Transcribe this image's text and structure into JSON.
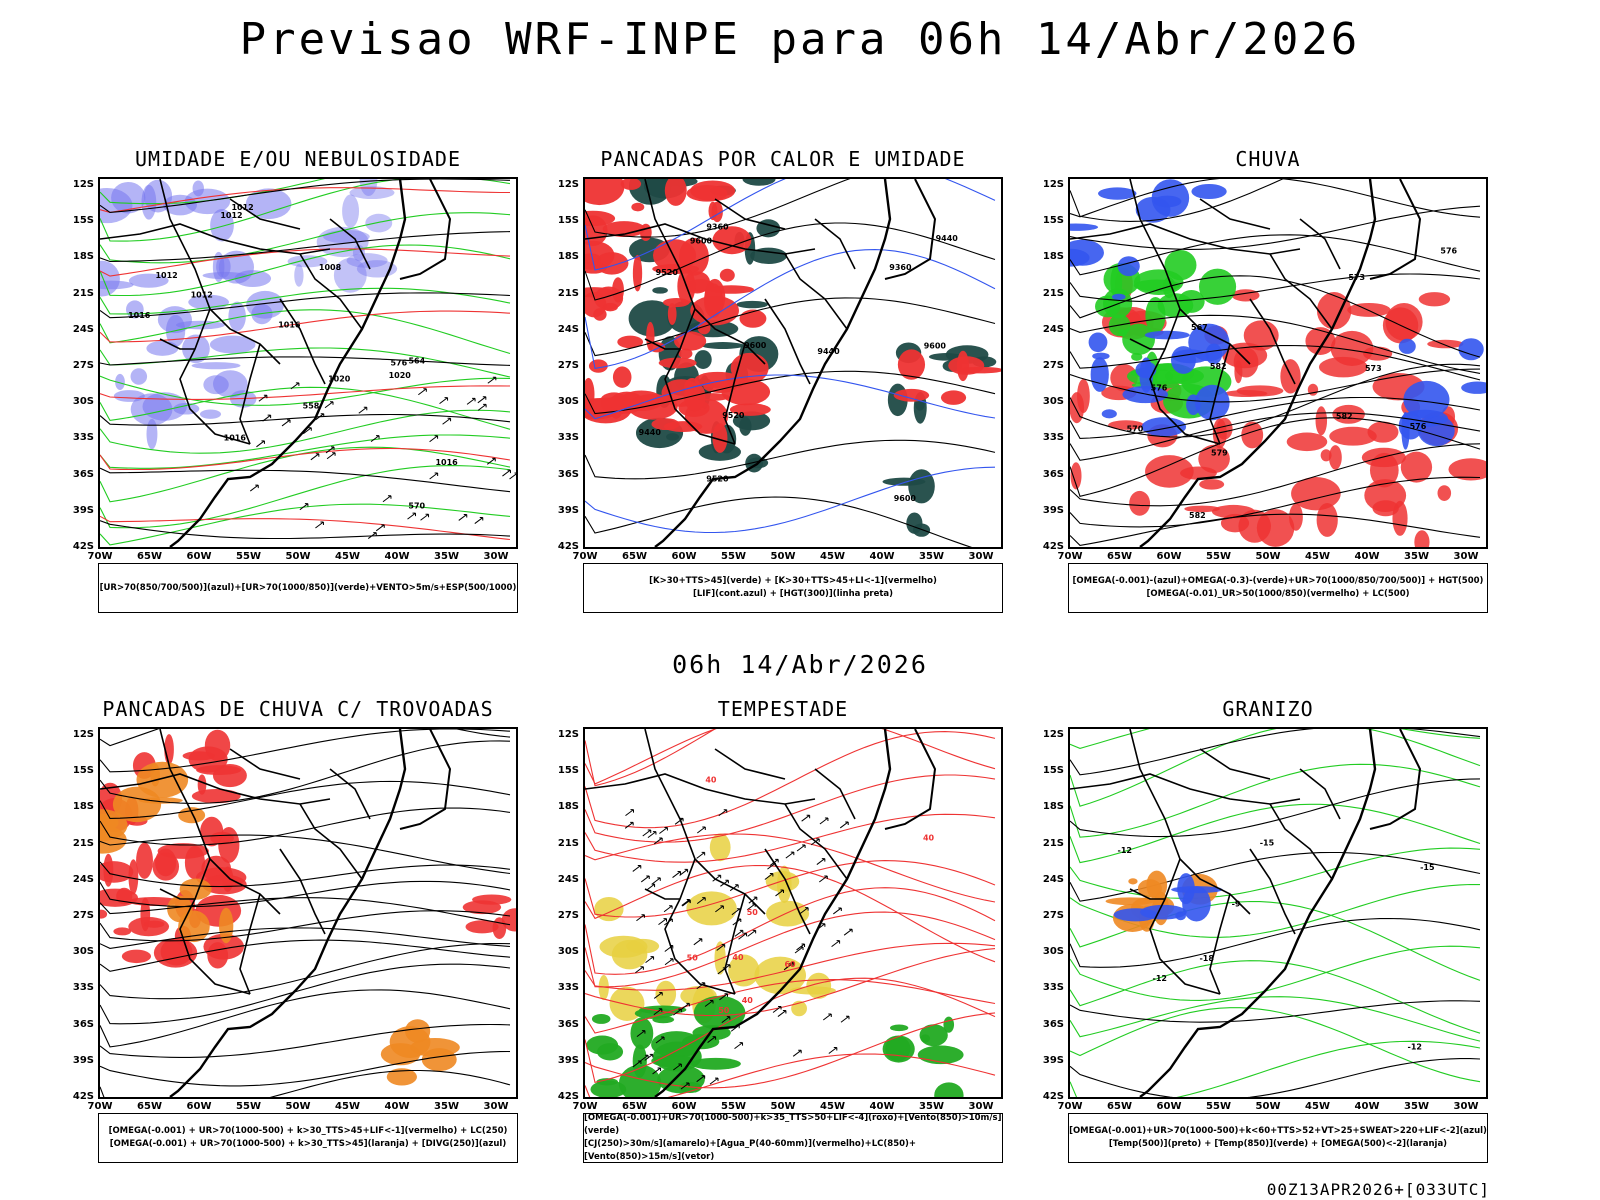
{
  "title": "Previsao WRF-INPE  para 06h 14/Abr/2026",
  "subtitle": "06h 14/Abr/2026",
  "footer": "00Z13APR2026+[033UTC]",
  "lat_labels": [
    "12S",
    "15S",
    "18S",
    "21S",
    "24S",
    "27S",
    "30S",
    "33S",
    "36S",
    "39S",
    "42S"
  ],
  "lon_labels": [
    "70W",
    "65W",
    "60W",
    "55W",
    "50W",
    "45W",
    "40W",
    "35W",
    "30W"
  ],
  "colors": {
    "blue": "#7777ee",
    "green": "#22cc22",
    "red": "#ee3333",
    "orange": "#ee8822",
    "yellow": "#e8d040",
    "darkgreen": "#1f4a46",
    "black": "#000000"
  },
  "panels": [
    {
      "id": "umidade",
      "title": "UMIDADE E/OU NEBULOSIDADE",
      "legend": [
        "[UR>70(850/700/500)](azul)+[UR>70(1000/850)](verde)+VENTO>5m/s+ESP(500/1000)"
      ],
      "contour_labels": [
        "1012",
        "1012",
        "1016",
        "1012",
        "1016",
        "1008",
        "1016",
        "1020",
        "1016",
        "1020",
        "1012",
        "576",
        "570",
        "564",
        "558"
      ]
    },
    {
      "id": "pancadas-calor",
      "title": "PANCADAS POR CALOR E UMIDADE",
      "legend": [
        "[K>30+TTS>45](verde) + [K>30+TTS>45+LI<-1](vermelho)",
        "[LIF](cont.azul) + [HGT(300)](linha preta)"
      ],
      "contour_labels": [
        "9600",
        "9600",
        "9600",
        "9600",
        "9440",
        "9520",
        "9440",
        "9520",
        "9520",
        "9440",
        "9360",
        "9360"
      ]
    },
    {
      "id": "chuva",
      "title": "CHUVA",
      "legend": [
        "[OMEGA(-0.001)-(azul)+OMEGA(-0.3)-(verde)+UR>70(1000/850/700/500)] + HGT(500)",
        "[OMEGA(-0.01)_UR>50(1000/850)(vermelho) + LC(500)"
      ],
      "contour_labels": [
        "582",
        "582",
        "582",
        "579",
        "576",
        "573",
        "576",
        "576",
        "573",
        "570",
        "567"
      ]
    },
    {
      "id": "pancadas-trovoadas",
      "title": "PANCADAS DE CHUVA C/ TROVOADAS",
      "legend": [
        "[OMEGA(-0.001) + UR>70(1000-500) + k>30_TTS>45+LIF<-1](vermelho) + LC(250)",
        "[OMEGA(-0.001) + UR>70(1000-500) + k>30_TTS>45](laranja) + [DIVG(250)](azul)"
      ],
      "contour_labels": []
    },
    {
      "id": "tempestade",
      "title": "TEMPESTADE",
      "legend": [
        "[OMEGA(-0.001)+UR>70(1000-500)+k>35_TTS>50+LIF<-4](roxo)+[Vento(850)>10m/s](verde)",
        "[CJ(250)>30m/s](amarelo)+[Agua_P(40-60mm)](vermelho)+LC(850)+[Vento(850)>15m/s](vetor)"
      ],
      "contour_labels": [
        "40",
        "40",
        "50",
        "50",
        "60",
        "40",
        "50",
        "40"
      ]
    },
    {
      "id": "granizo",
      "title": "GRANIZO",
      "legend": [
        "[OMEGA(-0.001)+UR>70(1000-500)+k<60+TTS>52+VT>25+SWEAT>220+LIF<-2](azul)",
        "[Temp(500)](preto) + [Temp(850)](verde) + [OMEGA(500)<-2](laranja)"
      ],
      "contour_labels": [
        "-9",
        "-12",
        "-12",
        "-15",
        "-18",
        "-15",
        "-12"
      ]
    }
  ]
}
